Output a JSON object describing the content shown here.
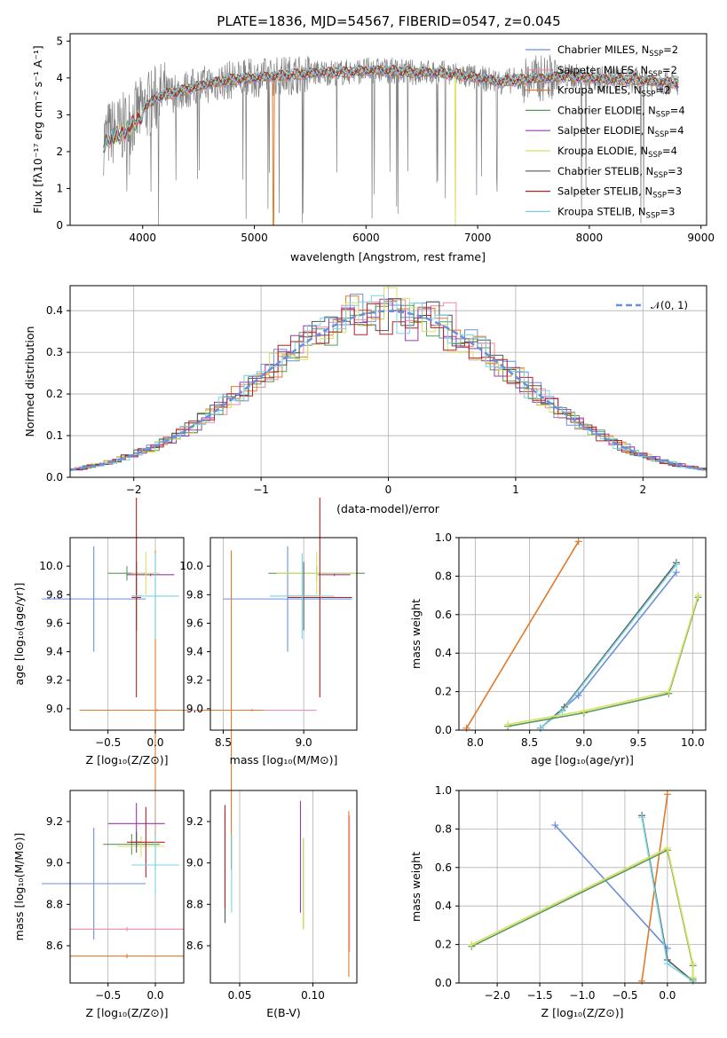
{
  "colors": [
    "#6a8fdc",
    "#f08aa0",
    "#e07a2a",
    "#5a9a5a",
    "#9a3ab0",
    "#d8e060",
    "#555555",
    "#b22222",
    "#7ad4e0"
  ],
  "chart_data": [
    {
      "id": "spectrum",
      "type": "line",
      "title": "PLATE=1836, MJD=54567, FIBERID=0547, z=0.045",
      "xlabel": "wavelength [Angstrom, rest frame]",
      "ylabel": "Flux [fλ10⁻¹⁷ erg cm⁻² s⁻¹ A⁻¹]",
      "xlim": [
        3350,
        9050
      ],
      "ylim": [
        0,
        5.2
      ],
      "xticks": [
        "4000",
        "5000",
        "6000",
        "7000",
        "8000",
        "9000"
      ],
      "yticks": [
        "0",
        "1",
        "2",
        "3",
        "4",
        "5"
      ],
      "legend_position": "top-right",
      "data_color": "#808080",
      "series": [
        {
          "name": "Chabrier MILES, N",
          "sub": "SSP",
          "suffix": "=2"
        },
        {
          "name": "Salpeter MILES, N",
          "sub": "SSP",
          "suffix": "=2"
        },
        {
          "name": "Kroupa MILES, N",
          "sub": "SSP",
          "suffix": "=2"
        },
        {
          "name": "Chabrier ELODIE, N",
          "sub": "SSP",
          "suffix": "=4"
        },
        {
          "name": "Salpeter ELODIE, N",
          "sub": "SSP",
          "suffix": "=4"
        },
        {
          "name": "Kroupa ELODIE, N",
          "sub": "SSP",
          "suffix": "=4"
        },
        {
          "name": "Chabrier STELIB, N",
          "sub": "SSP",
          "suffix": "=3"
        },
        {
          "name": "Salpeter STELIB, N",
          "sub": "SSP",
          "suffix": "=3"
        },
        {
          "name": "Kroupa STELIB, N",
          "sub": "SSP",
          "suffix": "=3"
        }
      ],
      "continuum": [
        [
          3650,
          2.3
        ],
        [
          3700,
          2.5
        ],
        [
          3800,
          2.6
        ],
        [
          3900,
          2.85
        ],
        [
          4000,
          3.15
        ],
        [
          4100,
          3.4
        ],
        [
          4200,
          3.55
        ],
        [
          4300,
          3.6
        ],
        [
          4400,
          3.7
        ],
        [
          4600,
          3.85
        ],
        [
          4800,
          3.95
        ],
        [
          5000,
          4.0
        ],
        [
          5200,
          4.05
        ],
        [
          5400,
          4.1
        ],
        [
          5600,
          4.15
        ],
        [
          5800,
          4.15
        ],
        [
          6000,
          4.2
        ],
        [
          6200,
          4.2
        ],
        [
          6400,
          4.15
        ],
        [
          6600,
          4.15
        ],
        [
          6800,
          4.1
        ],
        [
          7000,
          4.0
        ],
        [
          7200,
          3.9
        ],
        [
          7400,
          3.95
        ],
        [
          7600,
          4.0
        ],
        [
          7800,
          4.05
        ],
        [
          8000,
          4.0
        ],
        [
          8200,
          3.95
        ],
        [
          8400,
          3.95
        ],
        [
          8600,
          3.9
        ],
        [
          8800,
          3.85
        ]
      ]
    },
    {
      "id": "histogram",
      "type": "histogram",
      "xlabel": "(data-model)/error",
      "ylabel": "Normed distribution",
      "xlim": [
        -2.5,
        2.5
      ],
      "ylim": [
        0,
        0.46
      ],
      "xticks": [
        "-2",
        "-1",
        "0",
        "1",
        "2"
      ],
      "yticks": [
        "0.0",
        "0.1",
        "0.2",
        "0.3",
        "0.4"
      ],
      "grid": true,
      "legend": "𝒩(0, 1)",
      "legend_position": "top-right",
      "normal_mean": 0,
      "normal_sigma": 1
    },
    {
      "id": "age_vs_Z",
      "type": "errorbar",
      "xlabel": "Z [log₁₀(Z/Z⊙)]",
      "ylabel": "age  [log₁₀(age/yr)]",
      "xlim": [
        -0.9,
        0.3
      ],
      "ylim": [
        8.85,
        10.2
      ],
      "xticks": [
        "-0.5",
        "0.0"
      ],
      "xtick_values": [
        -0.5,
        0.0
      ],
      "yticks": [
        "9.0",
        "9.2",
        "9.4",
        "9.6",
        "9.8",
        "10.0"
      ],
      "ytick_values": [
        9.0,
        9.2,
        9.4,
        9.6,
        9.8,
        10.0
      ],
      "points": [
        {
          "c": 0,
          "x": -0.65,
          "xe": 0.55,
          "y": 9.77,
          "ye": 0.37
        },
        {
          "c": 1,
          "x": 0.02,
          "xe": 0.15,
          "y": 8.99,
          "ye": 0.01
        },
        {
          "c": 2,
          "x": 0.0,
          "xe": 0.8,
          "y": 8.99,
          "ye": 1.12
        },
        {
          "c": 3,
          "x": -0.3,
          "xe": 0.2,
          "y": 9.95,
          "ye": 0.05
        },
        {
          "c": 4,
          "x": -0.05,
          "xe": 0.25,
          "y": 9.94,
          "ye": 0.01
        },
        {
          "c": 5,
          "x": -0.1,
          "xe": 0.15,
          "y": 9.95,
          "ye": 0.15
        },
        {
          "c": 6,
          "x": -0.2,
          "xe": 0.05,
          "y": 9.79,
          "ye": 0.24
        },
        {
          "c": 7,
          "x": -0.2,
          "xe": 0.05,
          "y": 9.78,
          "ye": 0.7
        },
        {
          "c": 8,
          "x": 0.0,
          "xe": 0.25,
          "y": 9.79,
          "ye": 0.3
        }
      ]
    },
    {
      "id": "age_vs_mass",
      "type": "errorbar",
      "xlabel": "mass [log₁₀(M/M⊙)]",
      "ylabel": "",
      "xlim": [
        8.42,
        9.33
      ],
      "ylim": [
        8.85,
        10.2
      ],
      "xticks": [
        "8.5",
        "9.0"
      ],
      "xtick_values": [
        8.5,
        9.0
      ],
      "yticks": [
        "9.0",
        "9.2",
        "9.4",
        "9.6",
        "9.8",
        "10.0"
      ],
      "ytick_values": [
        9.0,
        9.2,
        9.4,
        9.6,
        9.8,
        10.0
      ],
      "points": [
        {
          "c": 0,
          "x": 8.9,
          "xe": 0.4,
          "y": 9.77,
          "ye": 0.37
        },
        {
          "c": 1,
          "x": 8.68,
          "xe": 0.4,
          "y": 8.99,
          "ye": 0.01
        },
        {
          "c": 2,
          "x": 8.55,
          "xe": 0.2,
          "y": 8.99,
          "ye": 1.12
        },
        {
          "c": 3,
          "x": 9.08,
          "xe": 0.3,
          "y": 9.95,
          "ye": 0.05
        },
        {
          "c": 4,
          "x": 9.19,
          "xe": 0.1,
          "y": 9.94,
          "ye": 0.01
        },
        {
          "c": 5,
          "x": 9.08,
          "xe": 0.25,
          "y": 9.95,
          "ye": 0.15
        },
        {
          "c": 6,
          "x": 9.0,
          "xe": 0.1,
          "y": 9.79,
          "ye": 0.24
        },
        {
          "c": 7,
          "x": 9.1,
          "xe": 0.2,
          "y": 9.78,
          "ye": 0.7
        },
        {
          "c": 8,
          "x": 8.99,
          "xe": 0.2,
          "y": 9.79,
          "ye": 0.3
        }
      ]
    },
    {
      "id": "weight_vs_age",
      "type": "line",
      "xlabel": "age  [log₁₀(age/yr)]",
      "ylabel": "mass weight",
      "xlim": [
        7.85,
        10.12
      ],
      "ylim": [
        0,
        1.0
      ],
      "xticks": [
        "8.0",
        "8.5",
        "9.0",
        "9.5",
        "10.0"
      ],
      "xtick_values": [
        8.0,
        8.5,
        9.0,
        9.5,
        10.0
      ],
      "yticks": [
        "0.0",
        "0.2",
        "0.4",
        "0.6",
        "0.8",
        "1.0"
      ],
      "ytick_values": [
        0,
        0.2,
        0.4,
        0.6,
        0.8,
        1.0
      ],
      "series": [
        {
          "c": 2,
          "points": [
            [
              7.92,
              0.01
            ],
            [
              8.95,
              0.98
            ]
          ]
        },
        {
          "c": 0,
          "points": [
            [
              8.6,
              0.01
            ],
            [
              8.95,
              0.18
            ],
            [
              9.85,
              0.82
            ]
          ]
        },
        {
          "c": 6,
          "points": [
            [
              8.6,
              0.01
            ],
            [
              8.82,
              0.12
            ],
            [
              9.85,
              0.87
            ]
          ]
        },
        {
          "c": 8,
          "points": [
            [
              8.6,
              0.01
            ],
            [
              8.8,
              0.1
            ],
            [
              9.85,
              0.86
            ]
          ]
        },
        {
          "c": 3,
          "points": [
            [
              8.3,
              0.02
            ],
            [
              9.0,
              0.09
            ],
            [
              9.78,
              0.19
            ],
            [
              10.05,
              0.69
            ]
          ]
        },
        {
          "c": 5,
          "points": [
            [
              8.3,
              0.03
            ],
            [
              9.0,
              0.1
            ],
            [
              9.78,
              0.2
            ],
            [
              10.05,
              0.7
            ]
          ]
        }
      ]
    },
    {
      "id": "mass_vs_Z",
      "type": "errorbar",
      "xlabel": "Z [log₁₀(Z/Z⊙)]",
      "ylabel": "mass [log₁₀(M/M⊙)]",
      "xlim": [
        -0.9,
        0.3
      ],
      "ylim": [
        8.42,
        9.35
      ],
      "xticks": [
        "-0.5",
        "0.0"
      ],
      "xtick_values": [
        -0.5,
        0.0
      ],
      "yticks": [
        "8.6",
        "8.8",
        "9.0",
        "9.2"
      ],
      "ytick_values": [
        8.6,
        8.8,
        9.0,
        9.2
      ],
      "points": [
        {
          "c": 0,
          "x": -0.65,
          "xe": 0.55,
          "y": 8.9,
          "ye": 0.27
        },
        {
          "c": 1,
          "x": -0.3,
          "xe": 0.6,
          "y": 8.68,
          "ye": 0.01
        },
        {
          "c": 2,
          "x": -0.3,
          "xe": 0.6,
          "y": 8.55,
          "ye": 0.01
        },
        {
          "c": 3,
          "x": -0.25,
          "xe": 0.3,
          "y": 9.09,
          "ye": 0.05
        },
        {
          "c": 4,
          "x": -0.2,
          "xe": 0.3,
          "y": 9.19,
          "ye": 0.1
        },
        {
          "c": 5,
          "x": -0.15,
          "xe": 0.25,
          "y": 9.08,
          "ye": 0.05
        },
        {
          "c": 6,
          "x": -0.2,
          "xe": 0.05,
          "y": 9.1,
          "ye": 0.05
        },
        {
          "c": 7,
          "x": -0.1,
          "xe": 0.2,
          "y": 9.1,
          "ye": 0.17
        },
        {
          "c": 8,
          "x": 0.0,
          "xe": 0.25,
          "y": 8.99,
          "ye": 0.14
        }
      ]
    },
    {
      "id": "mass_vs_ebv",
      "type": "errorbar",
      "xlabel": "E(B-V)",
      "ylabel": "",
      "xlim": [
        0.03,
        0.13
      ],
      "ylim": [
        8.42,
        9.35
      ],
      "xticks": [
        "0.05",
        "0.10"
      ],
      "xtick_values": [
        0.05,
        0.1
      ],
      "yticks": [
        "8.6",
        "8.8",
        "9.0",
        "9.2"
      ],
      "ytick_values": [
        8.6,
        8.8,
        9.0,
        9.2
      ],
      "points": [
        {
          "c": 6,
          "x": 0.04,
          "xe": 0,
          "y": 8.98,
          "ye": 0.27
        },
        {
          "c": 7,
          "x": 0.04,
          "xe": 0,
          "y": 9.03,
          "ye": 0.25
        },
        {
          "c": 8,
          "x": 0.0445,
          "xe": 0,
          "y": 8.95,
          "ye": 0.19
        },
        {
          "c": 4,
          "x": 0.0915,
          "xe": 0,
          "y": 9.03,
          "ye": 0.27
        },
        {
          "c": 3,
          "x": 0.0935,
          "xe": 0,
          "y": 8.9,
          "ye": 0.22
        },
        {
          "c": 5,
          "x": 0.0935,
          "xe": 0,
          "y": 8.9,
          "ye": 0.22
        },
        {
          "c": 2,
          "x": 0.1245,
          "xe": 0,
          "y": 8.85,
          "ye": 0.4
        },
        {
          "c": 1,
          "x": 0.125,
          "xe": 0,
          "y": 8.9,
          "ye": 0.33
        }
      ]
    },
    {
      "id": "weight_vs_Z",
      "type": "line",
      "xlabel": "Z [log₁₀(Z/Z⊙)]",
      "ylabel": "mass weight",
      "xlim": [
        -2.45,
        0.45
      ],
      "ylim": [
        0,
        1.0
      ],
      "xticks": [
        "-2.0",
        "-1.5",
        "-1.0",
        "-0.5",
        "0.0"
      ],
      "xtick_values": [
        -2.0,
        -1.5,
        -1.0,
        -0.5,
        0.0
      ],
      "yticks": [
        "0.0",
        "0.2",
        "0.4",
        "0.6",
        "0.8",
        "1.0"
      ],
      "ytick_values": [
        0,
        0.2,
        0.4,
        0.6,
        0.8,
        1.0
      ],
      "series": [
        {
          "c": 2,
          "points": [
            [
              -0.3,
              0.01
            ],
            [
              0.0,
              0.98
            ]
          ]
        },
        {
          "c": 0,
          "points": [
            [
              -1.32,
              0.82
            ],
            [
              0.0,
              0.18
            ]
          ]
        },
        {
          "c": 6,
          "points": [
            [
              -0.3,
              0.87
            ],
            [
              0.0,
              0.12
            ],
            [
              0.3,
              0.01
            ]
          ]
        },
        {
          "c": 8,
          "points": [
            [
              -0.3,
              0.86
            ],
            [
              0.0,
              0.1
            ],
            [
              0.3,
              0.01
            ]
          ]
        },
        {
          "c": 3,
          "points": [
            [
              -2.3,
              0.19
            ],
            [
              0.0,
              0.69
            ],
            [
              0.3,
              0.09
            ],
            [
              0.3,
              0.02
            ]
          ]
        },
        {
          "c": 5,
          "points": [
            [
              -2.3,
              0.2
            ],
            [
              0.0,
              0.7
            ],
            [
              0.3,
              0.1
            ],
            [
              0.3,
              0.03
            ]
          ]
        }
      ]
    }
  ]
}
